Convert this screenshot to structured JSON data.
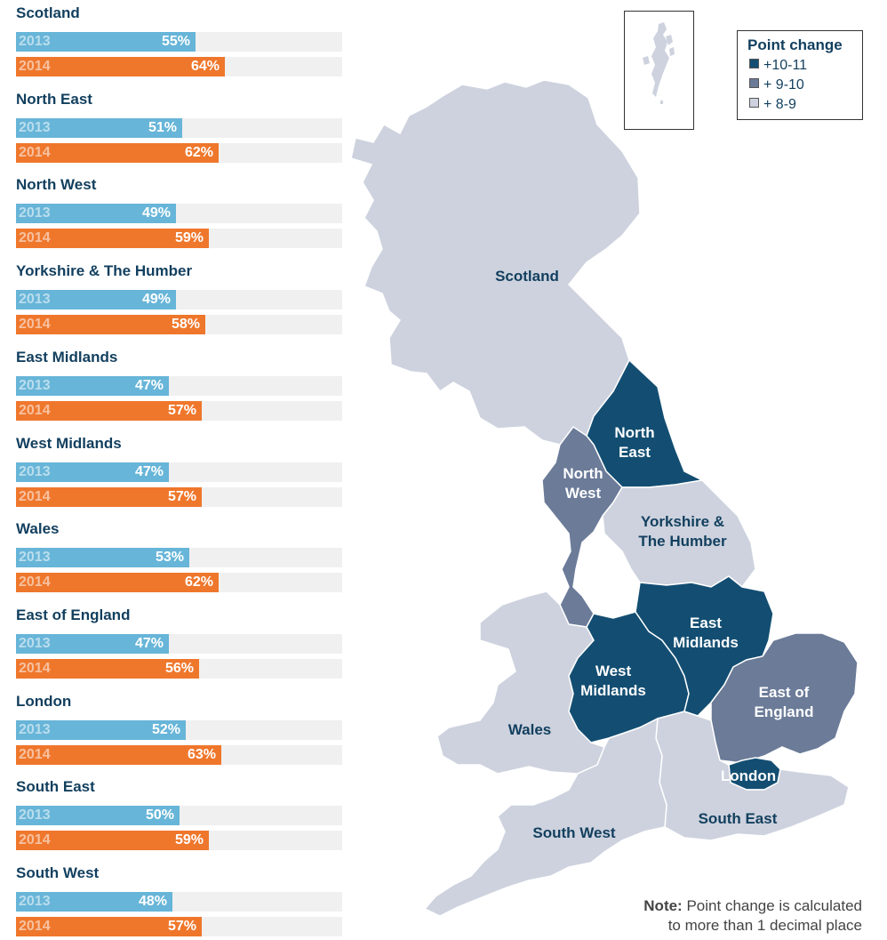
{
  "chart_data": [
    {
      "type": "bar",
      "categories": [
        "Scotland",
        "North East",
        "North West",
        "Yorkshire & The Humber",
        "East Midlands",
        "West Midlands",
        "Wales",
        "East of England",
        "London",
        "South East",
        "South West"
      ],
      "series": [
        {
          "name": "2013",
          "values": [
            55,
            51,
            49,
            49,
            47,
            47,
            53,
            47,
            52,
            50,
            48
          ]
        },
        {
          "name": "2014",
          "values": [
            64,
            62,
            59,
            58,
            57,
            57,
            62,
            56,
            63,
            59,
            57
          ]
        }
      ],
      "value_suffix": "%",
      "xlim": [
        0,
        100
      ],
      "colors": {
        "2013": "#67b5d8",
        "2014": "#ef772c",
        "track": "#f0f0f0"
      }
    },
    {
      "type": "map",
      "legend": {
        "title": "Point change",
        "items": [
          {
            "label": "+10-11",
            "color": "#134e72"
          },
          {
            "label": "+ 9-10",
            "color": "#6b7b98"
          },
          {
            "label": "+ 8-9",
            "color": "#cdd2de"
          }
        ],
        "placement": "top-right"
      },
      "regions": [
        {
          "id": "scotland",
          "lines": [
            "Scotland"
          ],
          "category": "+ 8-9"
        },
        {
          "id": "north-east",
          "lines": [
            "North",
            "East"
          ],
          "category": "+10-11"
        },
        {
          "id": "north-west",
          "lines": [
            "North",
            "West"
          ],
          "category": "+ 9-10"
        },
        {
          "id": "yorkshire",
          "lines": [
            "Yorkshire &",
            "The Humber"
          ],
          "category": "+ 8-9"
        },
        {
          "id": "east-midlands",
          "lines": [
            "East",
            "Midlands"
          ],
          "category": "+10-11"
        },
        {
          "id": "west-midlands",
          "lines": [
            "West",
            "Midlands"
          ],
          "category": "+10-11"
        },
        {
          "id": "wales",
          "lines": [
            "Wales"
          ],
          "category": "+ 8-9"
        },
        {
          "id": "east-of-england",
          "lines": [
            "East of",
            "England"
          ],
          "category": "+ 9-10"
        },
        {
          "id": "london",
          "lines": [
            "London"
          ],
          "category": "+10-11"
        },
        {
          "id": "south-east",
          "lines": [
            "South East"
          ],
          "category": "+ 8-9"
        },
        {
          "id": "south-west",
          "lines": [
            "South West"
          ],
          "category": "+ 8-9"
        }
      ]
    }
  ],
  "note": {
    "bold": "Note:",
    "line1": "Point change is calculated",
    "line2": "to more than 1 decimal place"
  }
}
